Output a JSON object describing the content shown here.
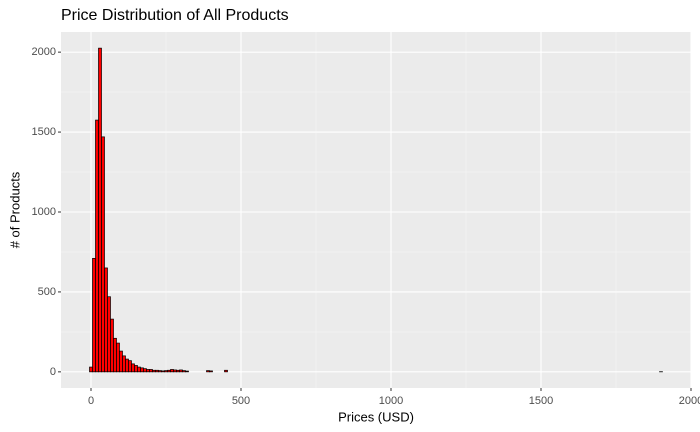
{
  "chart_data": {
    "type": "histogram",
    "title": "Price Distribution of All Products",
    "x_label": "Prices (USD)",
    "y_label": "# of Products",
    "color": "#ff0000",
    "edge_color": "#000000",
    "grid": true,
    "xlim": [
      -100,
      2000
    ],
    "ylim": [
      -101,
      2126
    ],
    "xticks": [
      0,
      500,
      1000,
      1500,
      2000
    ],
    "yticks": [
      0,
      500,
      1000,
      1500,
      2000
    ],
    "xminorticks": [
      250,
      750,
      1250,
      1750
    ],
    "yminorticks": [
      250,
      750,
      1250,
      1750
    ],
    "bins": [
      -5,
      5,
      15,
      25,
      35,
      45,
      55,
      65,
      75,
      85,
      95,
      105,
      115,
      125,
      135,
      145,
      155,
      165,
      175,
      185,
      195,
      205,
      215,
      225,
      235,
      245,
      255,
      265,
      275,
      285,
      295,
      305,
      315,
      325,
      335,
      345,
      355,
      365,
      375,
      385,
      395,
      405,
      415,
      425,
      435,
      445,
      455,
      465,
      475,
      485,
      495,
      505,
      515,
      525,
      535,
      545,
      555,
      565,
      575,
      585,
      595,
      605,
      615,
      625,
      635,
      645,
      655,
      665,
      675,
      685,
      695,
      705,
      715,
      725,
      735,
      745,
      755,
      765,
      775,
      785,
      795,
      805,
      815,
      825,
      835,
      845,
      855,
      865,
      875,
      885,
      895,
      905,
      915,
      925,
      935,
      945,
      955,
      965,
      975,
      985,
      995,
      1005,
      1015,
      1025,
      1035,
      1045,
      1055,
      1065,
      1075,
      1085,
      1095,
      1105,
      1115,
      1125,
      1135,
      1145,
      1155,
      1165,
      1175,
      1185,
      1195,
      1205,
      1215,
      1225,
      1235,
      1245,
      1255,
      1265,
      1275,
      1285,
      1295,
      1305,
      1315,
      1325,
      1335,
      1345,
      1355,
      1365,
      1375,
      1385,
      1395,
      1405,
      1415,
      1425,
      1435,
      1445,
      1455,
      1465,
      1475,
      1485,
      1495,
      1505,
      1515,
      1525,
      1535,
      1545,
      1555,
      1565,
      1575,
      1585,
      1595,
      1605,
      1615,
      1625,
      1635,
      1645,
      1655,
      1665,
      1675,
      1685,
      1695,
      1705,
      1715,
      1725,
      1735,
      1745,
      1755,
      1765,
      1775,
      1785,
      1795,
      1805,
      1815,
      1825,
      1835,
      1845,
      1855,
      1865,
      1875,
      1885,
      1895,
      1905
    ],
    "values": [
      30,
      710,
      1575,
      2025,
      1470,
      650,
      470,
      330,
      210,
      180,
      130,
      100,
      80,
      70,
      50,
      40,
      30,
      25,
      20,
      15,
      15,
      10,
      10,
      8,
      6,
      8,
      10,
      15,
      12,
      10,
      12,
      8,
      5,
      0,
      0,
      0,
      0,
      0,
      0,
      8,
      6,
      0,
      0,
      0,
      0,
      10,
      0,
      0,
      0,
      0,
      0,
      0,
      0,
      0,
      0,
      0,
      0,
      0,
      0,
      0,
      0,
      0,
      0,
      0,
      0,
      0,
      0,
      0,
      0,
      0,
      0,
      0,
      0,
      0,
      0,
      0,
      0,
      0,
      0,
      0,
      0,
      0,
      0,
      0,
      0,
      0,
      0,
      0,
      0,
      0,
      0,
      0,
      0,
      0,
      0,
      0,
      0,
      0,
      0,
      0,
      0,
      0,
      0,
      0,
      0,
      0,
      0,
      0,
      0,
      0,
      0,
      0,
      0,
      0,
      0,
      0,
      0,
      0,
      0,
      0,
      0,
      0,
      0,
      0,
      0,
      0,
      0,
      0,
      0,
      0,
      0,
      0,
      0,
      0,
      0,
      0,
      0,
      0,
      0,
      0,
      0,
      0,
      0,
      0,
      0,
      0,
      0,
      0,
      0,
      0,
      0,
      0,
      0,
      0,
      0,
      0,
      0,
      0,
      0,
      0,
      0,
      0,
      0,
      0,
      0,
      0,
      0,
      0,
      0,
      0,
      0,
      0,
      0,
      0,
      0,
      0,
      0,
      0,
      0,
      0,
      0,
      0,
      0,
      0,
      0,
      0,
      0,
      0,
      0,
      0,
      1
    ]
  }
}
